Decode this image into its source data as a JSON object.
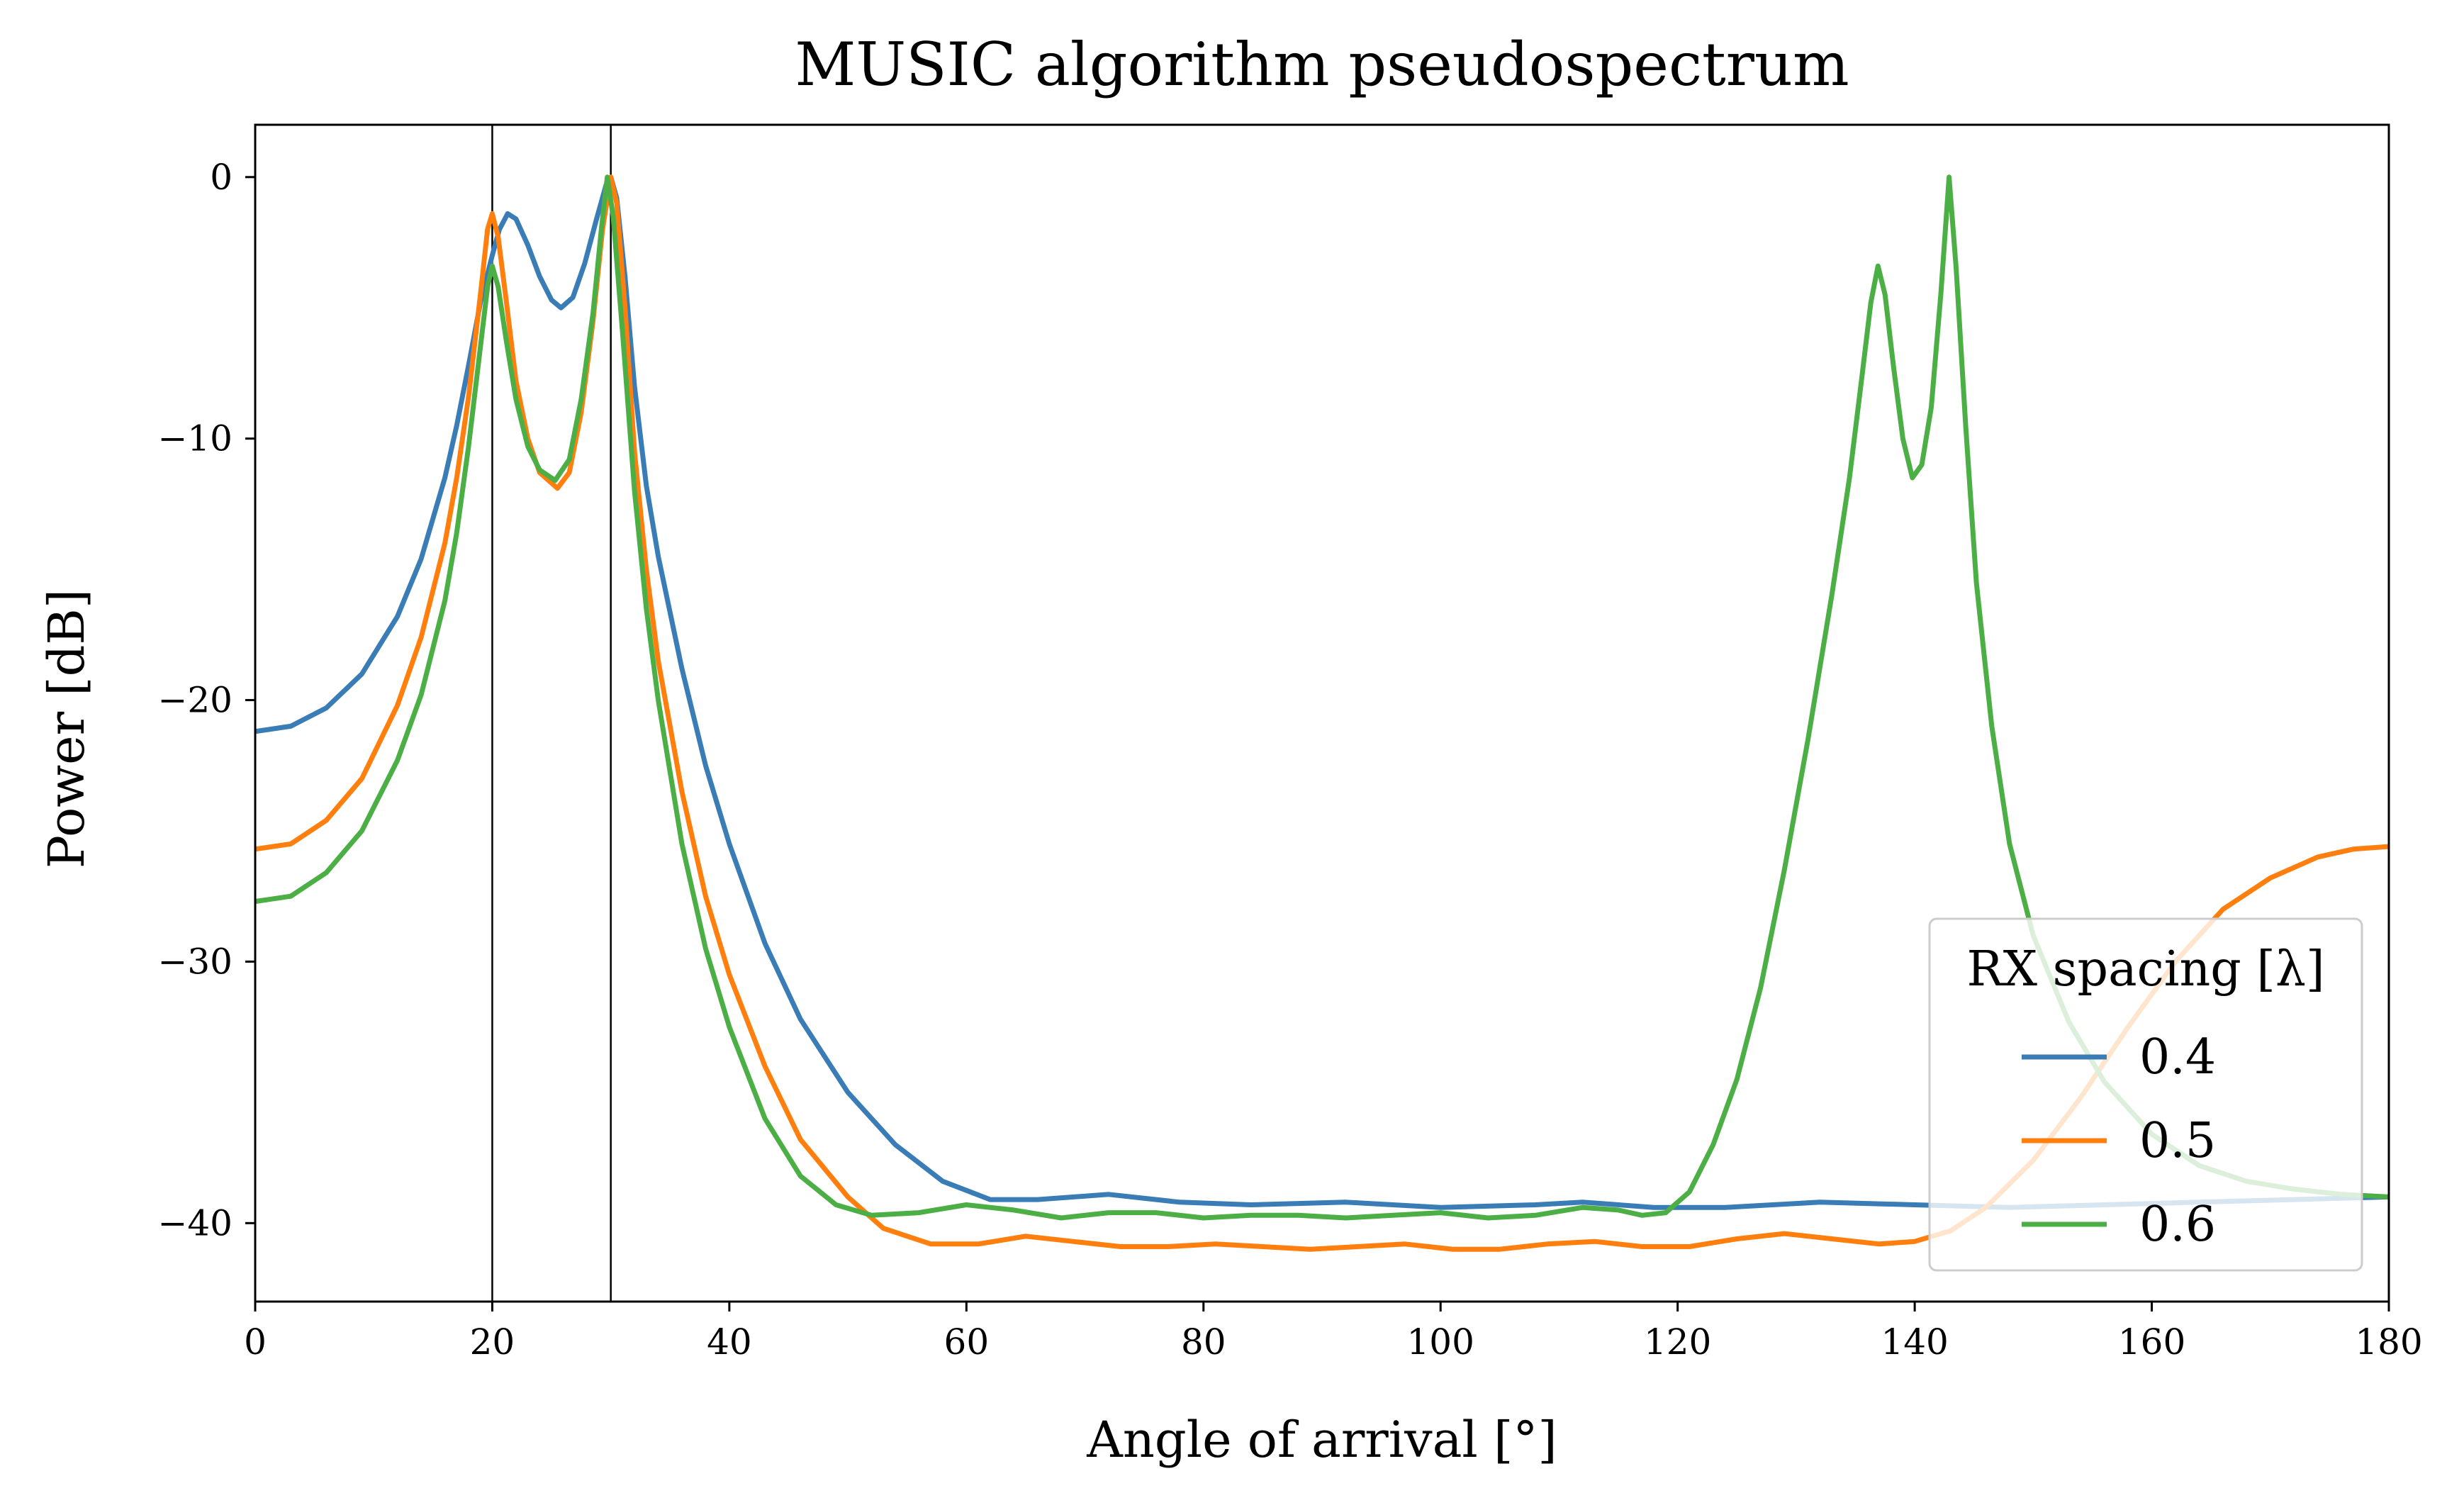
{
  "chart_data": {
    "type": "line",
    "title": "MUSIC algorithm pseudospectrum",
    "xlabel": "Angle of arrival [°]",
    "ylabel": "Power [dB]",
    "xlim": [
      0,
      180
    ],
    "ylim": [
      -43,
      2
    ],
    "xticks": [
      0,
      20,
      40,
      60,
      80,
      100,
      120,
      140,
      160,
      180
    ],
    "yticks": [
      0,
      -10,
      -20,
      -30,
      -40
    ],
    "xtick_labels": [
      "0",
      "20",
      "40",
      "60",
      "80",
      "100",
      "120",
      "140",
      "160",
      "180"
    ],
    "ytick_labels": [
      "0",
      "−10",
      "−20",
      "−30",
      "−40"
    ],
    "grid": false,
    "reference_lines_x": [
      20,
      30
    ],
    "legend": {
      "title": "RX spacing [λ]",
      "position": "lower right"
    },
    "series": [
      {
        "name": "0.4",
        "color": "#3a7db6",
        "points": [
          [
            0,
            -21.2
          ],
          [
            3,
            -21.0
          ],
          [
            6,
            -20.3
          ],
          [
            9,
            -19.0
          ],
          [
            12,
            -16.8
          ],
          [
            14,
            -14.6
          ],
          [
            16,
            -11.5
          ],
          [
            17,
            -9.5
          ],
          [
            18,
            -7.2
          ],
          [
            19,
            -4.8
          ],
          [
            20,
            -3.0
          ],
          [
            20.6,
            -2.0
          ],
          [
            21.3,
            -1.4
          ],
          [
            22,
            -1.6
          ],
          [
            23,
            -2.6
          ],
          [
            24,
            -3.8
          ],
          [
            25,
            -4.7
          ],
          [
            25.8,
            -5.0
          ],
          [
            26.8,
            -4.6
          ],
          [
            27.8,
            -3.3
          ],
          [
            28.8,
            -1.6
          ],
          [
            29.6,
            -0.3
          ],
          [
            30,
            0
          ],
          [
            30.5,
            -0.8
          ],
          [
            31.2,
            -3.8
          ],
          [
            32,
            -8.0
          ],
          [
            33,
            -11.8
          ],
          [
            34,
            -14.5
          ],
          [
            36,
            -18.8
          ],
          [
            38,
            -22.5
          ],
          [
            40,
            -25.5
          ],
          [
            43,
            -29.3
          ],
          [
            46,
            -32.2
          ],
          [
            50,
            -35.0
          ],
          [
            54,
            -37.0
          ],
          [
            58,
            -38.4
          ],
          [
            62,
            -39.1
          ],
          [
            66,
            -39.1
          ],
          [
            72,
            -38.9
          ],
          [
            78,
            -39.2
          ],
          [
            84,
            -39.3
          ],
          [
            92,
            -39.2
          ],
          [
            100,
            -39.4
          ],
          [
            108,
            -39.3
          ],
          [
            112,
            -39.2
          ],
          [
            118,
            -39.4
          ],
          [
            124,
            -39.4
          ],
          [
            132,
            -39.2
          ],
          [
            140,
            -39.3
          ],
          [
            148,
            -39.4
          ],
          [
            156,
            -39.3
          ],
          [
            164,
            -39.2
          ],
          [
            172,
            -39.1
          ],
          [
            180,
            -39.0
          ]
        ]
      },
      {
        "name": "0.5",
        "color": "#ff7f0e",
        "points": [
          [
            0,
            -25.7
          ],
          [
            3,
            -25.5
          ],
          [
            6,
            -24.6
          ],
          [
            9,
            -23.0
          ],
          [
            12,
            -20.2
          ],
          [
            14,
            -17.6
          ],
          [
            16,
            -14.0
          ],
          [
            17,
            -11.5
          ],
          [
            18,
            -8.4
          ],
          [
            19,
            -4.5
          ],
          [
            19.6,
            -2.0
          ],
          [
            20,
            -1.4
          ],
          [
            20.5,
            -2.3
          ],
          [
            21.2,
            -4.8
          ],
          [
            22,
            -7.8
          ],
          [
            23,
            -10.0
          ],
          [
            24,
            -11.3
          ],
          [
            25.5,
            -11.9
          ],
          [
            26.5,
            -11.3
          ],
          [
            27.5,
            -9.0
          ],
          [
            28.5,
            -5.5
          ],
          [
            29.3,
            -2.0
          ],
          [
            30,
            0
          ],
          [
            30.5,
            -1.0
          ],
          [
            31.2,
            -5.0
          ],
          [
            32,
            -10.5
          ],
          [
            33,
            -15.0
          ],
          [
            34,
            -18.5
          ],
          [
            36,
            -23.5
          ],
          [
            38,
            -27.5
          ],
          [
            40,
            -30.5
          ],
          [
            43,
            -34.0
          ],
          [
            46,
            -36.8
          ],
          [
            50,
            -39.0
          ],
          [
            53,
            -40.2
          ],
          [
            57,
            -40.8
          ],
          [
            61,
            -40.8
          ],
          [
            65,
            -40.5
          ],
          [
            69,
            -40.7
          ],
          [
            73,
            -40.9
          ],
          [
            77,
            -40.9
          ],
          [
            81,
            -40.8
          ],
          [
            85,
            -40.9
          ],
          [
            89,
            -41.0
          ],
          [
            93,
            -40.9
          ],
          [
            97,
            -40.8
          ],
          [
            101,
            -41.0
          ],
          [
            105,
            -41.0
          ],
          [
            109,
            -40.8
          ],
          [
            113,
            -40.7
          ],
          [
            117,
            -40.9
          ],
          [
            121,
            -40.9
          ],
          [
            125,
            -40.6
          ],
          [
            129,
            -40.4
          ],
          [
            133,
            -40.6
          ],
          [
            137,
            -40.8
          ],
          [
            140,
            -40.7
          ],
          [
            143,
            -40.3
          ],
          [
            146,
            -39.4
          ],
          [
            150,
            -37.6
          ],
          [
            154,
            -35.2
          ],
          [
            158,
            -32.5
          ],
          [
            162,
            -30.0
          ],
          [
            166,
            -28.0
          ],
          [
            170,
            -26.8
          ],
          [
            174,
            -26.0
          ],
          [
            177,
            -25.7
          ],
          [
            180,
            -25.6
          ]
        ]
      },
      {
        "name": "0.6",
        "color": "#4caf45",
        "points": [
          [
            0,
            -27.7
          ],
          [
            3,
            -27.5
          ],
          [
            6,
            -26.6
          ],
          [
            9,
            -25.0
          ],
          [
            12,
            -22.3
          ],
          [
            14,
            -19.8
          ],
          [
            16,
            -16.2
          ],
          [
            17,
            -13.6
          ],
          [
            18,
            -10.3
          ],
          [
            19,
            -6.5
          ],
          [
            19.6,
            -4.2
          ],
          [
            20,
            -3.4
          ],
          [
            20.5,
            -4.2
          ],
          [
            21.2,
            -6.3
          ],
          [
            22,
            -8.5
          ],
          [
            23,
            -10.3
          ],
          [
            24,
            -11.2
          ],
          [
            25.3,
            -11.6
          ],
          [
            26.5,
            -10.8
          ],
          [
            27.5,
            -8.5
          ],
          [
            28.5,
            -5.2
          ],
          [
            29.2,
            -2.0
          ],
          [
            29.7,
            0
          ],
          [
            30.2,
            -1.5
          ],
          [
            31,
            -6.0
          ],
          [
            32,
            -12.0
          ],
          [
            33,
            -16.5
          ],
          [
            34,
            -20.0
          ],
          [
            36,
            -25.5
          ],
          [
            38,
            -29.5
          ],
          [
            40,
            -32.5
          ],
          [
            43,
            -36.0
          ],
          [
            46,
            -38.2
          ],
          [
            49,
            -39.3
          ],
          [
            52,
            -39.7
          ],
          [
            56,
            -39.6
          ],
          [
            60,
            -39.3
          ],
          [
            64,
            -39.5
          ],
          [
            68,
            -39.8
          ],
          [
            72,
            -39.6
          ],
          [
            76,
            -39.6
          ],
          [
            80,
            -39.8
          ],
          [
            84,
            -39.7
          ],
          [
            88,
            -39.7
          ],
          [
            92,
            -39.8
          ],
          [
            96,
            -39.7
          ],
          [
            100,
            -39.6
          ],
          [
            104,
            -39.8
          ],
          [
            108,
            -39.7
          ],
          [
            112,
            -39.4
          ],
          [
            115,
            -39.5
          ],
          [
            117,
            -39.7
          ],
          [
            119,
            -39.6
          ],
          [
            121,
            -38.8
          ],
          [
            123,
            -37.0
          ],
          [
            125,
            -34.5
          ],
          [
            127,
            -31.0
          ],
          [
            129,
            -26.5
          ],
          [
            131,
            -21.5
          ],
          [
            133,
            -16.0
          ],
          [
            134.5,
            -11.5
          ],
          [
            135.5,
            -7.8
          ],
          [
            136.3,
            -4.8
          ],
          [
            136.9,
            -3.4
          ],
          [
            137.5,
            -4.5
          ],
          [
            138.2,
            -7.2
          ],
          [
            139,
            -10.0
          ],
          [
            139.8,
            -11.5
          ],
          [
            140.6,
            -11.0
          ],
          [
            141.4,
            -8.8
          ],
          [
            142.2,
            -4.5
          ],
          [
            142.9,
            0
          ],
          [
            143.5,
            -3.5
          ],
          [
            144.3,
            -9.5
          ],
          [
            145.2,
            -15.5
          ],
          [
            146.5,
            -21.0
          ],
          [
            148,
            -25.5
          ],
          [
            150,
            -29.0
          ],
          [
            153,
            -32.3
          ],
          [
            156,
            -34.6
          ],
          [
            160,
            -36.6
          ],
          [
            164,
            -37.8
          ],
          [
            168,
            -38.4
          ],
          [
            172,
            -38.7
          ],
          [
            176,
            -38.9
          ],
          [
            180,
            -39.0
          ]
        ]
      }
    ]
  }
}
